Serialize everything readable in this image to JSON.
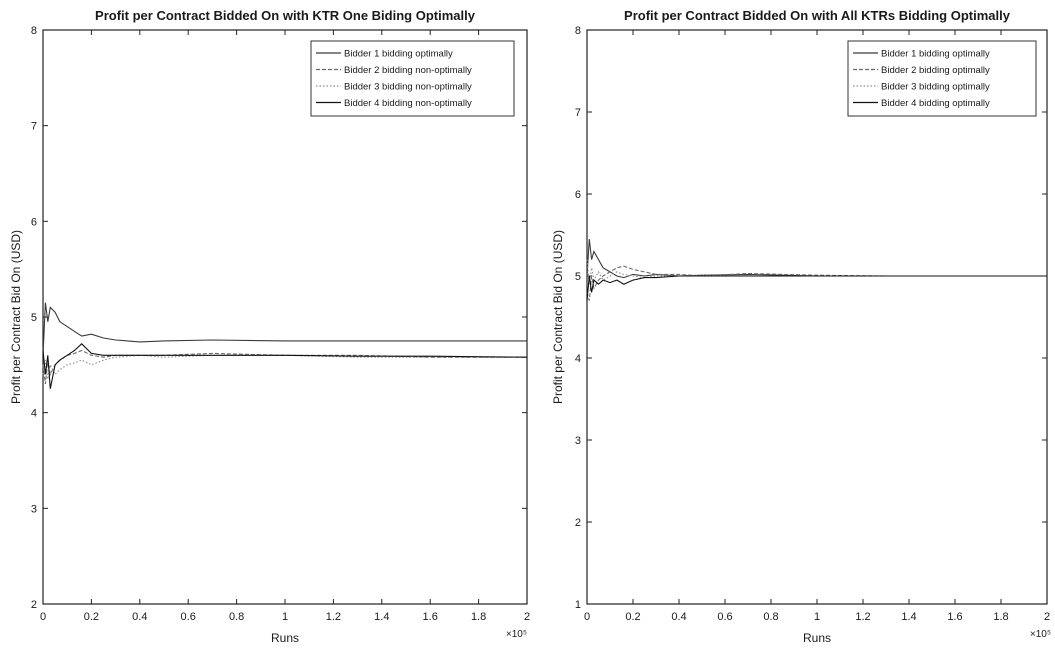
{
  "chart_data": [
    {
      "type": "line",
      "title": "Profit per Contract Bidded On with KTR One Biding Optimally",
      "xlabel": "Runs",
      "ylabel": "Profit per Contract Bid On (USD)",
      "x_exponent_label": "×10⁵",
      "xlim": [
        0,
        200000
      ],
      "ylim": [
        2,
        8
      ],
      "xticks": [
        0,
        20000,
        40000,
        60000,
        80000,
        100000,
        120000,
        140000,
        160000,
        180000,
        200000
      ],
      "xtick_labels": [
        "0",
        "0.2",
        "0.4",
        "0.6",
        "0.8",
        "1",
        "1.2",
        "1.4",
        "1.6",
        "1.8",
        "2"
      ],
      "yticks": [
        2,
        3,
        4,
        5,
        6,
        7,
        8
      ],
      "ytick_labels": [
        "2",
        "3",
        "4",
        "5",
        "6",
        "7",
        "8"
      ],
      "legend_position": "top-right",
      "grid": false,
      "x": [
        0,
        1000,
        2000,
        3000,
        5000,
        7000,
        10000,
        13000,
        16000,
        20000,
        25000,
        30000,
        40000,
        50000,
        70000,
        100000,
        130000,
        160000,
        200000
      ],
      "series": [
        {
          "name": "Bidder 1 bidding optimally",
          "color": "#3a3a3a",
          "values": [
            4.6,
            5.15,
            4.95,
            5.1,
            5.05,
            4.95,
            4.9,
            4.85,
            4.8,
            4.82,
            4.78,
            4.76,
            4.74,
            4.75,
            4.76,
            4.75,
            4.75,
            4.75,
            4.75
          ]
        },
        {
          "name": "Bidder 2 bidding non-optimally",
          "color": "#6a6a6a",
          "values": [
            4.5,
            4.3,
            4.55,
            4.4,
            4.5,
            4.55,
            4.6,
            4.62,
            4.65,
            4.6,
            4.58,
            4.6,
            4.6,
            4.6,
            4.62,
            4.6,
            4.6,
            4.58,
            4.58
          ]
        },
        {
          "name": "Bidder 3 bidding non-optimally",
          "color": "#8c8c8c",
          "values": [
            4.4,
            4.55,
            4.35,
            4.5,
            4.4,
            4.45,
            4.5,
            4.52,
            4.55,
            4.5,
            4.55,
            4.58,
            4.6,
            4.58,
            4.6,
            4.6,
            4.58,
            4.58,
            4.58
          ]
        },
        {
          "name": "Bidder 4 bidding non-optimally",
          "color": "#111111",
          "values": [
            4.65,
            4.4,
            4.6,
            4.25,
            4.5,
            4.55,
            4.6,
            4.65,
            4.72,
            4.62,
            4.6,
            4.6,
            4.6,
            4.6,
            4.6,
            4.6,
            4.59,
            4.59,
            4.58
          ]
        }
      ]
    },
    {
      "type": "line",
      "title": "Profit per Contract Bidded On with All KTRs Bidding Optimally",
      "xlabel": "Runs",
      "ylabel": "Profit per Contract Bid On (USD)",
      "x_exponent_label": "×10⁵",
      "xlim": [
        0,
        200000
      ],
      "ylim": [
        1,
        8
      ],
      "xticks": [
        0,
        20000,
        40000,
        60000,
        80000,
        100000,
        120000,
        140000,
        160000,
        180000,
        200000
      ],
      "xtick_labels": [
        "0",
        "0.2",
        "0.4",
        "0.6",
        "0.8",
        "1",
        "1.2",
        "1.4",
        "1.6",
        "1.8",
        "2"
      ],
      "yticks": [
        1,
        2,
        3,
        4,
        5,
        6,
        7,
        8
      ],
      "ytick_labels": [
        "1",
        "2",
        "3",
        "4",
        "5",
        "6",
        "7",
        "8"
      ],
      "legend_position": "top-right",
      "grid": false,
      "x": [
        0,
        1000,
        2000,
        3000,
        5000,
        7000,
        10000,
        13000,
        16000,
        20000,
        25000,
        30000,
        40000,
        50000,
        70000,
        100000,
        130000,
        160000,
        200000
      ],
      "series": [
        {
          "name": "Bidder 1 bidding optimally",
          "color": "#3a3a3a",
          "values": [
            5.0,
            5.45,
            5.2,
            5.3,
            5.2,
            5.1,
            5.05,
            5.0,
            4.98,
            5.02,
            5.0,
            5.02,
            5.0,
            5.01,
            5.02,
            5.0,
            5.0,
            5.0,
            5.0
          ]
        },
        {
          "name": "Bidder 2 bidding optimally",
          "color": "#6a6a6a",
          "values": [
            4.8,
            4.7,
            5.0,
            4.85,
            4.95,
            5.0,
            5.05,
            5.1,
            5.12,
            5.08,
            5.05,
            5.02,
            5.02,
            5.0,
            5.03,
            5.01,
            5.0,
            5.0,
            5.0
          ]
        },
        {
          "name": "Bidder 3 bidding optimally",
          "color": "#8c8c8c",
          "values": [
            5.2,
            4.9,
            5.1,
            4.95,
            5.05,
            4.95,
            5.0,
            5.05,
            5.02,
            5.0,
            4.98,
            5.0,
            5.0,
            5.01,
            5.0,
            5.0,
            5.0,
            5.0,
            5.0
          ]
        },
        {
          "name": "Bidder 4 bidding optimally",
          "color": "#111111",
          "values": [
            4.7,
            5.0,
            4.8,
            4.95,
            4.9,
            4.95,
            4.92,
            4.95,
            4.9,
            4.95,
            4.98,
            4.98,
            5.0,
            5.0,
            5.0,
            5.0,
            5.0,
            5.0,
            5.0
          ]
        }
      ]
    }
  ]
}
